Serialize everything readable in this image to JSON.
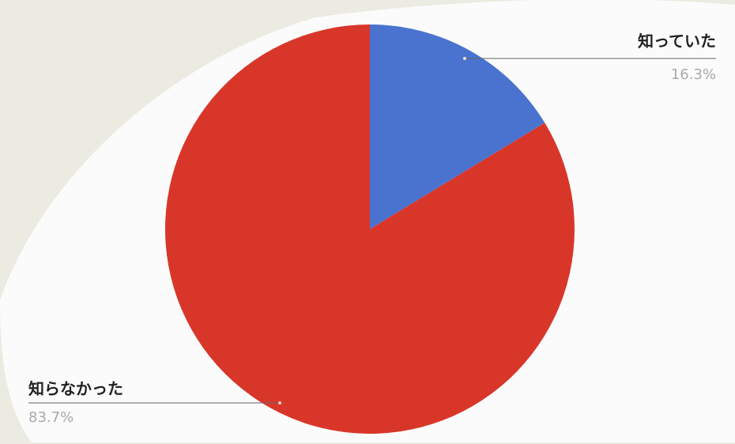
{
  "chart_data": {
    "type": "pie",
    "slices": [
      {
        "label": "知っていた",
        "value": 16.3,
        "value_text": "16.3%",
        "color": "#4a73cf"
      },
      {
        "label": "知らなかった",
        "value": 83.7,
        "value_text": "83.7%",
        "color": "#d9362a"
      }
    ],
    "start": "12 o'clock",
    "direction": "clockwise",
    "legend": "leader-line labels outside the pie"
  }
}
